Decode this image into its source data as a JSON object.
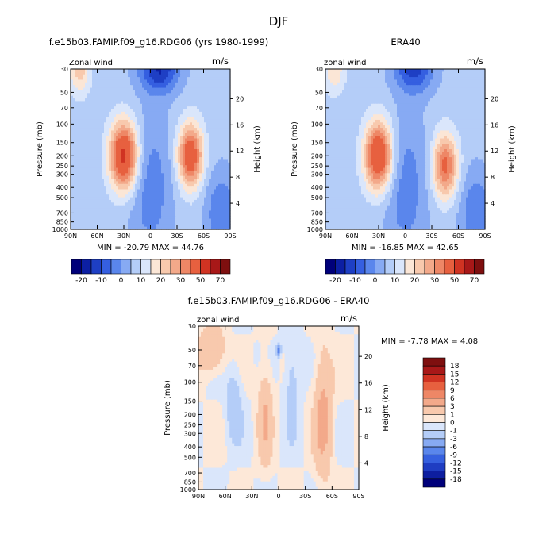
{
  "figure": {
    "title": "DJF"
  },
  "chart_data": [
    {
      "type": "heatmap",
      "title": "f.e15b03.FAMIP.f09_g16.RDG06 (yrs 1980-1999)",
      "left_label": "Zonal wind",
      "right_label": "m/s",
      "ylabel": "Pressure (mb)",
      "ylabel_right": "Height (km)",
      "x_ticks": [
        "90N",
        "60N",
        "30N",
        "0",
        "30S",
        "60S",
        "90S"
      ],
      "y_ticks": [
        "30",
        "50",
        "70",
        "100",
        "150",
        "200",
        "250",
        "300",
        "400",
        "500",
        "700",
        "850",
        "1000"
      ],
      "y_ticks_right": [
        "20",
        "16",
        "12",
        "8",
        "4"
      ],
      "stats": {
        "min_label": "MIN =",
        "min": "-20.79",
        "max_label": "MAX =",
        "max": "44.76"
      },
      "colorbar_labels": [
        "-20",
        "-10",
        "0",
        "10",
        "20",
        "30",
        "50",
        "70"
      ],
      "features": [
        {
          "lat": 30,
          "p": 200,
          "value": 44
        },
        {
          "lat": -45,
          "p": 200,
          "value": 38
        },
        {
          "lat": 80,
          "p": 30,
          "value": 18
        },
        {
          "lat": -10,
          "p": 30,
          "value": -20
        },
        {
          "lat": 0,
          "p": 400,
          "value": -8
        },
        {
          "lat": -80,
          "p": 700,
          "value": -10
        }
      ]
    },
    {
      "type": "heatmap",
      "title": "ERA40",
      "left_label": "zonal wind",
      "right_label": "m/s",
      "ylabel": "Pressure (mb)",
      "ylabel_right": "Height (km)",
      "x_ticks": [
        "90N",
        "60N",
        "30N",
        "0",
        "30S",
        "60S",
        "90S"
      ],
      "y_ticks": [
        "30",
        "50",
        "70",
        "100",
        "150",
        "200",
        "250",
        "300",
        "400",
        "500",
        "700",
        "850",
        "1000"
      ],
      "y_ticks_right": [
        "20",
        "16",
        "12",
        "8",
        "4"
      ],
      "stats": {
        "min_label": "MIN =",
        "min": "-16.85",
        "max_label": "MAX =",
        "max": "42.65"
      },
      "colorbar_labels": [
        "-20",
        "-10",
        "0",
        "10",
        "20",
        "30",
        "50",
        "70"
      ],
      "features": [
        {
          "lat": 30,
          "p": 200,
          "value": 42
        },
        {
          "lat": -45,
          "p": 250,
          "value": 32
        },
        {
          "lat": 80,
          "p": 30,
          "value": 14
        },
        {
          "lat": -10,
          "p": 30,
          "value": -17
        },
        {
          "lat": 0,
          "p": 400,
          "value": -8
        },
        {
          "lat": -80,
          "p": 700,
          "value": -10
        }
      ]
    },
    {
      "type": "heatmap",
      "title": "f.e15b03.FAMIP.f09_g16.RDG06 - ERA40",
      "left_label": "zonal wind",
      "right_label": "m/s",
      "ylabel": "Pressure (mb)",
      "ylabel_right": "Height (km)",
      "x_ticks": [
        "90N",
        "60N",
        "30N",
        "0",
        "30S",
        "60S",
        "90S"
      ],
      "y_ticks": [
        "30",
        "50",
        "70",
        "100",
        "150",
        "200",
        "250",
        "300",
        "400",
        "500",
        "700",
        "850",
        "1000"
      ],
      "y_ticks_right": [
        "20",
        "16",
        "12",
        "8",
        "4"
      ],
      "stats": {
        "min_label": "MIN =",
        "min": "-7.78",
        "max_label": "MAX =",
        "max": "4.08"
      },
      "colorbar_labels": [
        "18",
        "15",
        "12",
        "9",
        "6",
        "3",
        "1",
        "0",
        "-1",
        "-3",
        "-6",
        "-9",
        "-12",
        "-15",
        "-18"
      ],
      "features": [
        {
          "lat": 75,
          "p": 50,
          "value": 3
        },
        {
          "lat": 50,
          "p": 150,
          "value": -2
        },
        {
          "lat": 15,
          "p": 200,
          "value": 3
        },
        {
          "lat": -50,
          "p": 200,
          "value": 4
        },
        {
          "lat": -15,
          "p": 100,
          "value": -2
        },
        {
          "lat": 0,
          "p": 50,
          "value": -7
        }
      ]
    }
  ],
  "palettes": {
    "full": [
      "#00007a",
      "#0c1fa3",
      "#1e3fc4",
      "#355fe0",
      "#5a86ec",
      "#87aaf3",
      "#b4cdf8",
      "#dae6fb",
      "#fbe6d6",
      "#f8c9ad",
      "#f3a98a",
      "#ee8766",
      "#e7603f",
      "#d03322",
      "#a81818",
      "#7e0f0f"
    ],
    "diff": [
      "#00007a",
      "#0d1ea0",
      "#1f3dc2",
      "#3660df",
      "#5a86ec",
      "#87aaf3",
      "#b4cdf8",
      "#dae6fb",
      "#fde8d8",
      "#f8c9ad",
      "#f3a98a",
      "#ee8766",
      "#e7603f",
      "#d03322",
      "#a81818",
      "#7e0f0f"
    ]
  }
}
